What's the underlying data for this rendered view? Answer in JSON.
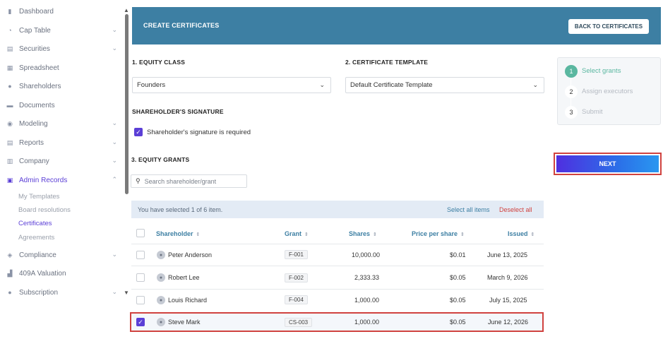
{
  "sidebar": {
    "items": [
      {
        "label": "Dashboard",
        "icon": "dashboard-icon",
        "glyph": "▮",
        "chevron": ""
      },
      {
        "label": "Cap Table",
        "icon": "pie-chart-icon",
        "glyph": "◔",
        "chevron": "⌄"
      },
      {
        "label": "Securities",
        "icon": "document-icon",
        "glyph": "▤",
        "chevron": "⌄"
      },
      {
        "label": "Spreadsheet",
        "icon": "spreadsheet-icon",
        "glyph": "▦",
        "chevron": ""
      },
      {
        "label": "Shareholders",
        "icon": "person-icon",
        "glyph": "●",
        "chevron": ""
      },
      {
        "label": "Documents",
        "icon": "folder-icon",
        "glyph": "▬",
        "chevron": ""
      },
      {
        "label": "Modeling",
        "icon": "bulb-icon",
        "glyph": "◉",
        "chevron": "⌄"
      },
      {
        "label": "Reports",
        "icon": "report-icon",
        "glyph": "▤",
        "chevron": "⌄"
      },
      {
        "label": "Company",
        "icon": "building-icon",
        "glyph": "▥",
        "chevron": "⌄"
      },
      {
        "label": "Admin Records",
        "icon": "records-icon",
        "glyph": "▣",
        "chevron": "⌃"
      },
      {
        "label": "Compliance",
        "icon": "shield-icon",
        "glyph": "◈",
        "chevron": "⌄"
      },
      {
        "label": "409A Valuation",
        "icon": "chart-icon",
        "glyph": "▟",
        "chevron": ""
      },
      {
        "label": "Subscription",
        "icon": "info-icon",
        "glyph": "●",
        "chevron": "⌄"
      }
    ],
    "sub_items": [
      "My Templates",
      "Board resolutions",
      "Certificates",
      "Agreements"
    ]
  },
  "header": {
    "title": "CREATE CERTIFICATES",
    "back_label": "BACK TO CERTIFICATES"
  },
  "form": {
    "equity_class_label": "1. EQUITY CLASS",
    "equity_class_value": "Founders",
    "template_label": "2. CERTIFICATE TEMPLATE",
    "template_value": "Default Certificate Template",
    "signature_label": "SHAREHOLDER'S SIGNATURE",
    "signature_checkbox_label": "Shareholder's signature is required",
    "grants_label": "3. EQUITY GRANTS",
    "search_placeholder": "Search shareholder/grant"
  },
  "selection": {
    "summary": "You have selected 1 of 6 item.",
    "select_all": "Select all items",
    "deselect_all": "Deselect all"
  },
  "table": {
    "headers": [
      "Shareholder",
      "Grant",
      "Shares",
      "Price per share",
      "Issued"
    ],
    "rows": [
      {
        "name": "Peter Anderson",
        "grant": "F-001",
        "shares": "10,000.00",
        "price": "$0.01",
        "issued": "June 13, 2025",
        "checked": false
      },
      {
        "name": "Robert Lee",
        "grant": "F-002",
        "shares": "2,333.33",
        "price": "$0.05",
        "issued": "March 9, 2026",
        "checked": false
      },
      {
        "name": "Louis Richard",
        "grant": "F-004",
        "shares": "1,000.00",
        "price": "$0.05",
        "issued": "July 15, 2025",
        "checked": false
      },
      {
        "name": "Steve Mark",
        "grant": "CS-003",
        "shares": "1,000.00",
        "price": "$0.05",
        "issued": "June 12, 2026",
        "checked": true
      }
    ]
  },
  "stepper": {
    "steps": [
      {
        "num": "1",
        "label": "Select grants",
        "active": true
      },
      {
        "num": "2",
        "label": "Assign executors",
        "active": false
      },
      {
        "num": "3",
        "label": "Submit",
        "active": false
      }
    ]
  },
  "next_label": "NEXT",
  "colors": {
    "accent": "#5b3fd6",
    "banner": "#3d7fa3",
    "highlight": "#d0423f",
    "step_active": "#5ab7a0"
  }
}
